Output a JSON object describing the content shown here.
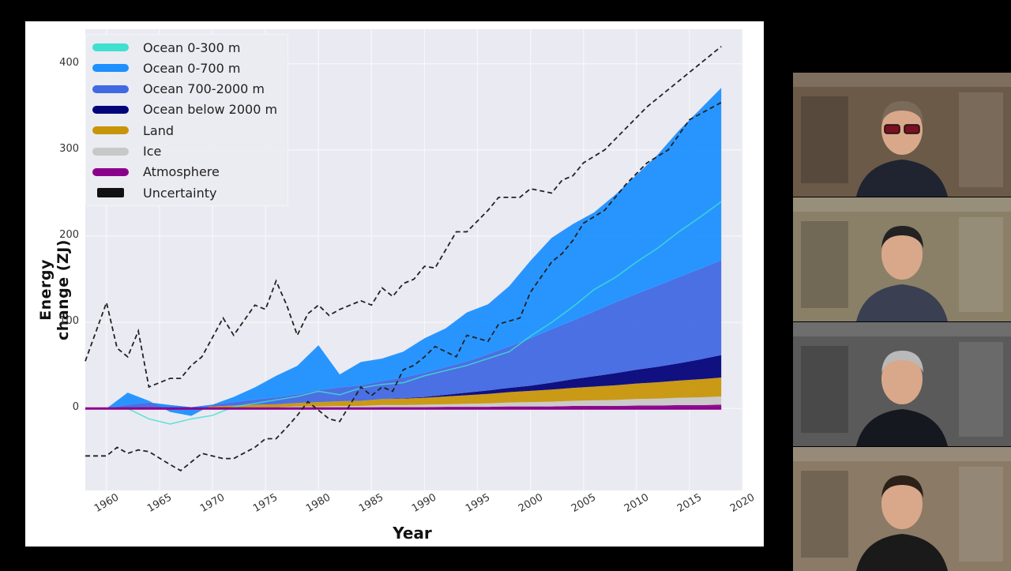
{
  "chart_data": {
    "type": "area",
    "xlabel": "Year",
    "ylabel": "Energy change (ZJ)",
    "xlim": [
      1958,
      2020
    ],
    "ylim": [
      -95,
      440
    ],
    "xticks": [
      "1960",
      "1965",
      "1970",
      "1975",
      "1980",
      "1985",
      "1990",
      "1995",
      "2000",
      "2005",
      "2010",
      "2015",
      "2020"
    ],
    "yticks": [
      "0",
      "100",
      "200",
      "300",
      "400"
    ],
    "grid": true,
    "legend_position": "top-left",
    "x": [
      1960,
      1962,
      1964,
      1966,
      1968,
      1970,
      1972,
      1974,
      1976,
      1978,
      1980,
      1982,
      1984,
      1986,
      1988,
      1990,
      1992,
      1994,
      1996,
      1998,
      2000,
      2002,
      2004,
      2006,
      2008,
      2010,
      2012,
      2014,
      2016,
      2018
    ],
    "series": [
      {
        "name": "Atmosphere",
        "color": "#8b008b",
        "values": [
          0,
          0,
          0,
          0,
          0,
          0,
          0.5,
          0.5,
          0.5,
          1,
          1,
          1,
          1,
          1.5,
          1.5,
          1.5,
          2,
          2,
          2,
          2.5,
          2.5,
          2.5,
          3,
          3,
          3,
          3.5,
          3.5,
          4,
          4,
          4.5
        ]
      },
      {
        "name": "Ice",
        "color": "#c8c8c8",
        "values": [
          0,
          0,
          0,
          0,
          0,
          0.5,
          0.5,
          1,
          1,
          1.5,
          1.5,
          2,
          2,
          2.5,
          2.5,
          3,
          3,
          3.5,
          4,
          4.5,
          5,
          5.5,
          6,
          6.5,
          7,
          7.5,
          8,
          8.5,
          9,
          9.5
        ]
      },
      {
        "name": "Land",
        "color": "#c8950a",
        "values": [
          0,
          0.5,
          1,
          1,
          1.5,
          2,
          2.5,
          3,
          3.5,
          4,
          5,
          5.5,
          6,
          7,
          7.5,
          8,
          9,
          10,
          11,
          12,
          13,
          14,
          15,
          16,
          17,
          18,
          19,
          20,
          21,
          22
        ]
      },
      {
        "name": "Ocean below 2000 m",
        "color": "#04047a",
        "values": [
          0,
          0,
          0,
          0,
          0,
          0,
          0,
          0,
          0,
          0,
          0,
          0,
          0,
          0,
          0.5,
          1,
          2,
          3,
          4,
          5,
          6,
          8,
          10,
          12,
          14,
          16,
          18,
          20,
          23,
          26
        ]
      },
      {
        "name": "Ocean 700-2000 m",
        "color": "#4169e1",
        "values": [
          0,
          4,
          6,
          3,
          0,
          2,
          4,
          6,
          8,
          10,
          14,
          16,
          18,
          21,
          24,
          28,
          32,
          36,
          42,
          48,
          55,
          62,
          68,
          75,
          82,
          88,
          94,
          100,
          105,
          110
        ]
      },
      {
        "name": "Ocean 0-700 m",
        "color": "#1e90ff",
        "values": [
          0,
          14,
          2,
          -8,
          -10,
          0,
          6,
          14,
          25,
          33,
          52,
          15,
          27,
          26,
          30,
          40,
          45,
          57,
          58,
          70,
          90,
          106,
          112,
          115,
          125,
          138,
          152,
          170,
          185,
          200
        ]
      },
      {
        "name": "Ocean 0-300 m",
        "color": "#40e0d0",
        "values": [
          0,
          0,
          -12,
          -18,
          -12,
          -8,
          2,
          6,
          10,
          14,
          20,
          16,
          24,
          28,
          30,
          38,
          44,
          50,
          58,
          66,
          84,
          100,
          118,
          138,
          152,
          170,
          186,
          205,
          222,
          240
        ]
      }
    ],
    "uncertainty_upper": [
      55,
      123,
      70,
      60,
      90,
      25,
      35,
      35,
      50,
      60,
      105,
      85,
      120,
      115,
      148,
      120,
      85,
      110,
      120,
      108,
      115,
      120,
      125,
      120,
      140,
      130,
      145,
      150,
      165,
      163,
      205,
      205,
      230,
      245,
      245,
      255,
      250,
      265,
      270,
      285,
      300,
      325,
      350,
      370,
      390,
      420
    ],
    "uncertainty_lower": [
      -55,
      -55,
      -45,
      -52,
      -48,
      -50,
      -65,
      -72,
      -62,
      -52,
      -58,
      -58,
      -45,
      -35,
      -35,
      -22,
      -8,
      8,
      -2,
      -12,
      -15,
      5,
      25,
      15,
      25,
      20,
      45,
      50,
      60,
      72,
      60,
      85,
      78,
      98,
      105,
      135,
      170,
      180,
      195,
      215,
      230,
      260,
      285,
      300,
      335,
      355
    ],
    "uncertainty_x": [
      1958,
      1960,
      1961,
      1962,
      1963,
      1964,
      1966,
      1967,
      1968,
      1969,
      1971,
      1972,
      1974,
      1975,
      1976,
      1977,
      1978,
      1979,
      1980,
      1981,
      1982,
      1983,
      1984,
      1985,
      1986,
      1987,
      1988,
      1989,
      1990,
      1991,
      1993,
      1994,
      1996,
      1997,
      1999,
      2000,
      2002,
      2003,
      2004,
      2005,
      2007,
      2009,
      2011,
      2013,
      2015,
      2018
    ]
  },
  "legend": [
    {
      "label": "Ocean 0-300 m",
      "color": "#40e0d0",
      "kind": "line"
    },
    {
      "label": "Ocean 0-700 m",
      "color": "#1e90ff",
      "kind": "line"
    },
    {
      "label": "Ocean 700-2000 m",
      "color": "#4169e1",
      "kind": "line"
    },
    {
      "label": "Ocean below 2000 m",
      "color": "#04047a",
      "kind": "line"
    },
    {
      "label": "Land",
      "color": "#c8950a",
      "kind": "line"
    },
    {
      "label": "Ice",
      "color": "#c8c8c8",
      "kind": "line"
    },
    {
      "label": "Atmosphere",
      "color": "#8b008b",
      "kind": "line"
    },
    {
      "label": "Uncertainty",
      "color": "#111111",
      "kind": "patch"
    }
  ],
  "participants": [
    {
      "name": "participant-1",
      "bg": "#6b5a48",
      "shirt": "#1f2430",
      "hair": "#7a6a5a",
      "glasses": true
    },
    {
      "name": "participant-2",
      "bg": "#8a8068",
      "shirt": "#3a3f52",
      "hair": "#222222",
      "glasses": false
    },
    {
      "name": "participant-3",
      "bg": "#5a5a5a",
      "shirt": "#15181e",
      "hair": "#b9b9b9",
      "glasses": false
    },
    {
      "name": "participant-4",
      "bg": "#8a7a66",
      "shirt": "#1a1a1a",
      "hair": "#2b2118",
      "glasses": false
    }
  ],
  "colors": {
    "plot_bg": "#eaeaf2",
    "grid": "#f7f7fb",
    "uncertainty": "#222222"
  }
}
